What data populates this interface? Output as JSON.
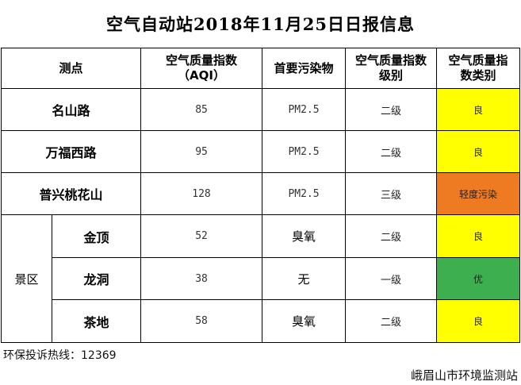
{
  "title": "空气自动站2018年11月25日日报信息",
  "headers": {
    "site": "测点",
    "aqi_line1": "空气质量指数",
    "aqi_line2": "（AQI）",
    "pollutant": "首要污染物",
    "grade_line1": "空气质量指数",
    "grade_line2": "级别",
    "category_line1": "空气质量指",
    "category_line2": "数类别"
  },
  "rows": [
    {
      "site": "名山路",
      "aqi": "85",
      "pollutant": "PM2.5",
      "grade": "二级",
      "category": "良",
      "color": "#ffff00"
    },
    {
      "site": "万福西路",
      "aqi": "95",
      "pollutant": "PM2.5",
      "grade": "二级",
      "category": "良",
      "color": "#ffff00"
    },
    {
      "site": "普兴桃花山",
      "aqi": "128",
      "pollutant": "PM2.5",
      "grade": "三级",
      "category": "轻度污染",
      "color": "#ee7a22"
    }
  ],
  "scenic": {
    "group_label": "景区",
    "rows": [
      {
        "site": "金顶",
        "aqi": "52",
        "pollutant": "臭氧",
        "grade": "二级",
        "category": "良",
        "color": "#ffff00"
      },
      {
        "site": "龙洞",
        "aqi": "38",
        "pollutant": "无",
        "grade": "一级",
        "category": "优",
        "color": "#3daf4f"
      },
      {
        "site": "茶地",
        "aqi": "58",
        "pollutant": "臭氧",
        "grade": "二级",
        "category": "良",
        "color": "#ffff00"
      }
    ]
  },
  "hotline": "环保投诉热线：12369",
  "org": "峨眉山市环境监测站"
}
